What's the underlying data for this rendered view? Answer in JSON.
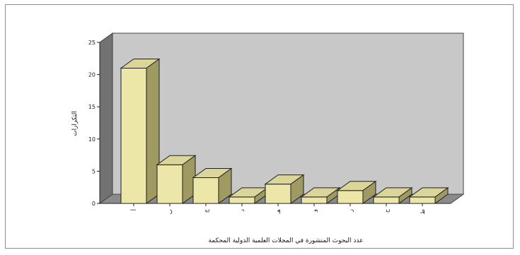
{
  "chart_data": {
    "type": "bar",
    "title": "",
    "xlabel": "عدد البحوث المنشورة في المجلات العلمية الدولية المحكمة",
    "ylabel": "التكرارات",
    "ylim": [
      0,
      25
    ],
    "yticks": [
      0,
      5,
      10,
      15,
      20,
      25
    ],
    "grid": false,
    "legend": "none",
    "categories": [
      "أ",
      "ب",
      "ج",
      "د",
      "هـ",
      "و",
      "ز",
      "ح",
      "ط"
    ],
    "values": [
      21,
      6,
      4,
      1,
      3,
      1,
      2,
      1,
      1
    ],
    "colors": {
      "bar_front": "#ece7a8",
      "bar_top": "#dbd59a",
      "bar_side": "#9f9a62",
      "back_wall": "#c8c8c8",
      "floor": "#8b8b8b",
      "side_wall": "#727272"
    }
  }
}
